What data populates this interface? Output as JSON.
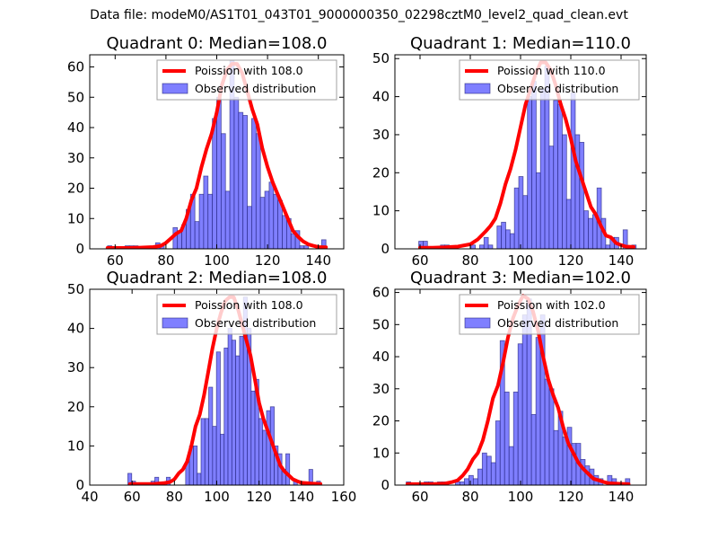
{
  "suptitle": "Data file: modeM0/AS1T01_043T01_9000000350_02298cztM0_level2_quad_clean.evt",
  "colors": {
    "bar_fill": "#7f7fff",
    "bar_edge": "#1f1f7a",
    "poisson_line": "#ff0000",
    "legend_border": "#a0a0a0"
  },
  "chart_data": [
    {
      "type": "bar",
      "title": "Quadrant 0: Median=108.0",
      "xlim": [
        50,
        150
      ],
      "ylim": [
        0,
        64
      ],
      "xticks": [
        60,
        80,
        100,
        120,
        140
      ],
      "yticks": [
        0,
        10,
        20,
        30,
        40,
        50,
        60
      ],
      "legend": {
        "placement": "top-right",
        "entries": [
          "Poission with 108.0",
          "Observed distribution"
        ]
      },
      "hist": {
        "bin_start": 57.0,
        "bin_width": 1.72,
        "counts": [
          1,
          0,
          0,
          0,
          1,
          1,
          1,
          0,
          0,
          0,
          0,
          2,
          1,
          0,
          0,
          7,
          6,
          8,
          13,
          18,
          9,
          18,
          24,
          18,
          43,
          50,
          38,
          19,
          62,
          50,
          45,
          44,
          14,
          43,
          38,
          17,
          19,
          22,
          18,
          16,
          11,
          10,
          5,
          6,
          1,
          1,
          0,
          0,
          0,
          3
        ]
      },
      "poisson": {
        "mean": 108.0,
        "x": [
          57,
          65,
          70,
          75,
          78,
          80,
          82,
          84,
          86,
          88,
          90,
          92,
          94,
          96,
          98,
          100,
          102,
          104,
          106,
          108,
          110,
          112,
          114,
          116,
          118,
          120,
          122,
          124,
          126,
          128,
          130,
          132,
          134,
          136,
          138,
          140,
          143
        ],
        "y": [
          0.3,
          0.3,
          0.4,
          0.6,
          1,
          2,
          3.5,
          5,
          6,
          10,
          16,
          20,
          27,
          33,
          38,
          45,
          54,
          59,
          61,
          61,
          58,
          52,
          46,
          41,
          33,
          27,
          22,
          18,
          14,
          10,
          6,
          4,
          2.5,
          1.5,
          1,
          0.6,
          0.5
        ]
      }
    },
    {
      "type": "bar",
      "title": "Quadrant 1: Median=110.0",
      "xlim": [
        50,
        150
      ],
      "ylim": [
        0,
        51
      ],
      "xticks": [
        60,
        80,
        100,
        120,
        140
      ],
      "yticks": [
        0,
        10,
        20,
        30,
        40,
        50
      ],
      "legend": {
        "placement": "top-right",
        "entries": [
          "Poission with 110.0",
          "Observed distribution"
        ]
      },
      "hist": {
        "bin_start": 59.5,
        "bin_width": 1.73,
        "counts": [
          2,
          2,
          0,
          0,
          0,
          1,
          1,
          0,
          0,
          0,
          0,
          0,
          1,
          0,
          1,
          3,
          1,
          0,
          6,
          7,
          5,
          4,
          16,
          19,
          14,
          40,
          44,
          20,
          42,
          48,
          27,
          39,
          38,
          30,
          13,
          41,
          30,
          28,
          10,
          8,
          9,
          16,
          8,
          1,
          3,
          3,
          0,
          5,
          0,
          1
        ]
      },
      "poisson": {
        "mean": 110.0,
        "x": [
          60,
          65,
          70,
          75,
          80,
          83,
          86,
          88,
          90,
          92,
          94,
          96,
          98,
          100,
          102,
          104,
          106,
          108,
          110,
          112,
          114,
          116,
          118,
          120,
          122,
          124,
          126,
          128,
          130,
          132,
          134,
          136,
          138,
          140,
          142,
          145
        ],
        "y": [
          0.3,
          0.3,
          0.4,
          0.6,
          1.2,
          2.5,
          4.5,
          6,
          8,
          12,
          17,
          21,
          26,
          32,
          38,
          42,
          46,
          49,
          49,
          47,
          43,
          38,
          34,
          29,
          23,
          19,
          15,
          11,
          9,
          6,
          3.5,
          3,
          1.5,
          1,
          0.6,
          0.5
        ]
      }
    },
    {
      "type": "bar",
      "title": "Quadrant 2: Median=108.0",
      "xlim": [
        40,
        160
      ],
      "ylim": [
        0,
        50
      ],
      "xticks": [
        40,
        60,
        80,
        100,
        120,
        140,
        160
      ],
      "yticks": [
        0,
        10,
        20,
        30,
        40,
        50
      ],
      "legend": {
        "placement": "top-right",
        "entries": [
          "Poission with 108.0",
          "Observed distribution"
        ]
      },
      "hist": {
        "bin_start": 58.0,
        "bin_width": 1.82,
        "counts": [
          3,
          1,
          0,
          0,
          0,
          0,
          1,
          2,
          0,
          0,
          2,
          0,
          0,
          0,
          0,
          6,
          10,
          10,
          3,
          17,
          17,
          25,
          15,
          34,
          13,
          35,
          40,
          37,
          33,
          38,
          48,
          40,
          24,
          27,
          17,
          14,
          19,
          20,
          10,
          8,
          4,
          8,
          0,
          1,
          0,
          0,
          0,
          4,
          0,
          1
        ]
      },
      "poisson": {
        "mean": 108.0,
        "x": [
          59,
          65,
          70,
          75,
          78,
          80,
          82,
          84,
          86,
          88,
          90,
          92,
          94,
          96,
          98,
          100,
          102,
          104,
          106,
          108,
          110,
          112,
          114,
          116,
          118,
          120,
          122,
          124,
          126,
          128,
          130,
          132,
          134,
          136,
          138,
          140,
          145,
          149
        ],
        "y": [
          0.3,
          0.3,
          0.3,
          0.5,
          0.8,
          1.5,
          3,
          4,
          6,
          10,
          15,
          18,
          23,
          29,
          35,
          40,
          44,
          47,
          48,
          48,
          45,
          41,
          37,
          33,
          27,
          21,
          17,
          14,
          11,
          8,
          5,
          3.5,
          2.5,
          1.5,
          1,
          0.6,
          0.4,
          0.3
        ]
      }
    },
    {
      "type": "bar",
      "title": "Quadrant 3: Median=102.0",
      "xlim": [
        50,
        150
      ],
      "ylim": [
        0,
        61
      ],
      "xticks": [
        60,
        80,
        100,
        120,
        140
      ],
      "yticks": [
        0,
        10,
        20,
        30,
        40,
        50,
        60
      ],
      "legend": {
        "placement": "top-right",
        "entries": [
          "Poission with 102.0",
          "Observed distribution"
        ]
      },
      "hist": {
        "bin_start": 54.5,
        "bin_width": 1.78,
        "counts": [
          1,
          0,
          0,
          0,
          1,
          1,
          0,
          1,
          1,
          0,
          0,
          1,
          1,
          2,
          3,
          2,
          5,
          10,
          9,
          7,
          20,
          45,
          29,
          12,
          29,
          44,
          53,
          58,
          22,
          46,
          53,
          33,
          30,
          17,
          23,
          15,
          18,
          13,
          13,
          8,
          6,
          5,
          3,
          2,
          0,
          3,
          2,
          0,
          0,
          2
        ]
      },
      "poisson": {
        "mean": 102.0,
        "x": [
          55,
          60,
          65,
          70,
          73,
          75,
          77,
          79,
          81,
          83,
          85,
          87,
          89,
          91,
          93,
          95,
          97,
          99,
          101,
          103,
          105,
          107,
          109,
          111,
          113,
          115,
          117,
          119,
          121,
          123,
          125,
          127,
          129,
          131,
          133,
          135,
          140,
          143
        ],
        "y": [
          0.3,
          0.3,
          0.3,
          0.5,
          1,
          1.5,
          3,
          5,
          8,
          10,
          14,
          20,
          27,
          31,
          38,
          46,
          52,
          56,
          59,
          58,
          54,
          48,
          40,
          33,
          28,
          24,
          18,
          13,
          10,
          7,
          5,
          3.5,
          2,
          1.5,
          1,
          0.6,
          0.4,
          0.3
        ]
      }
    }
  ]
}
